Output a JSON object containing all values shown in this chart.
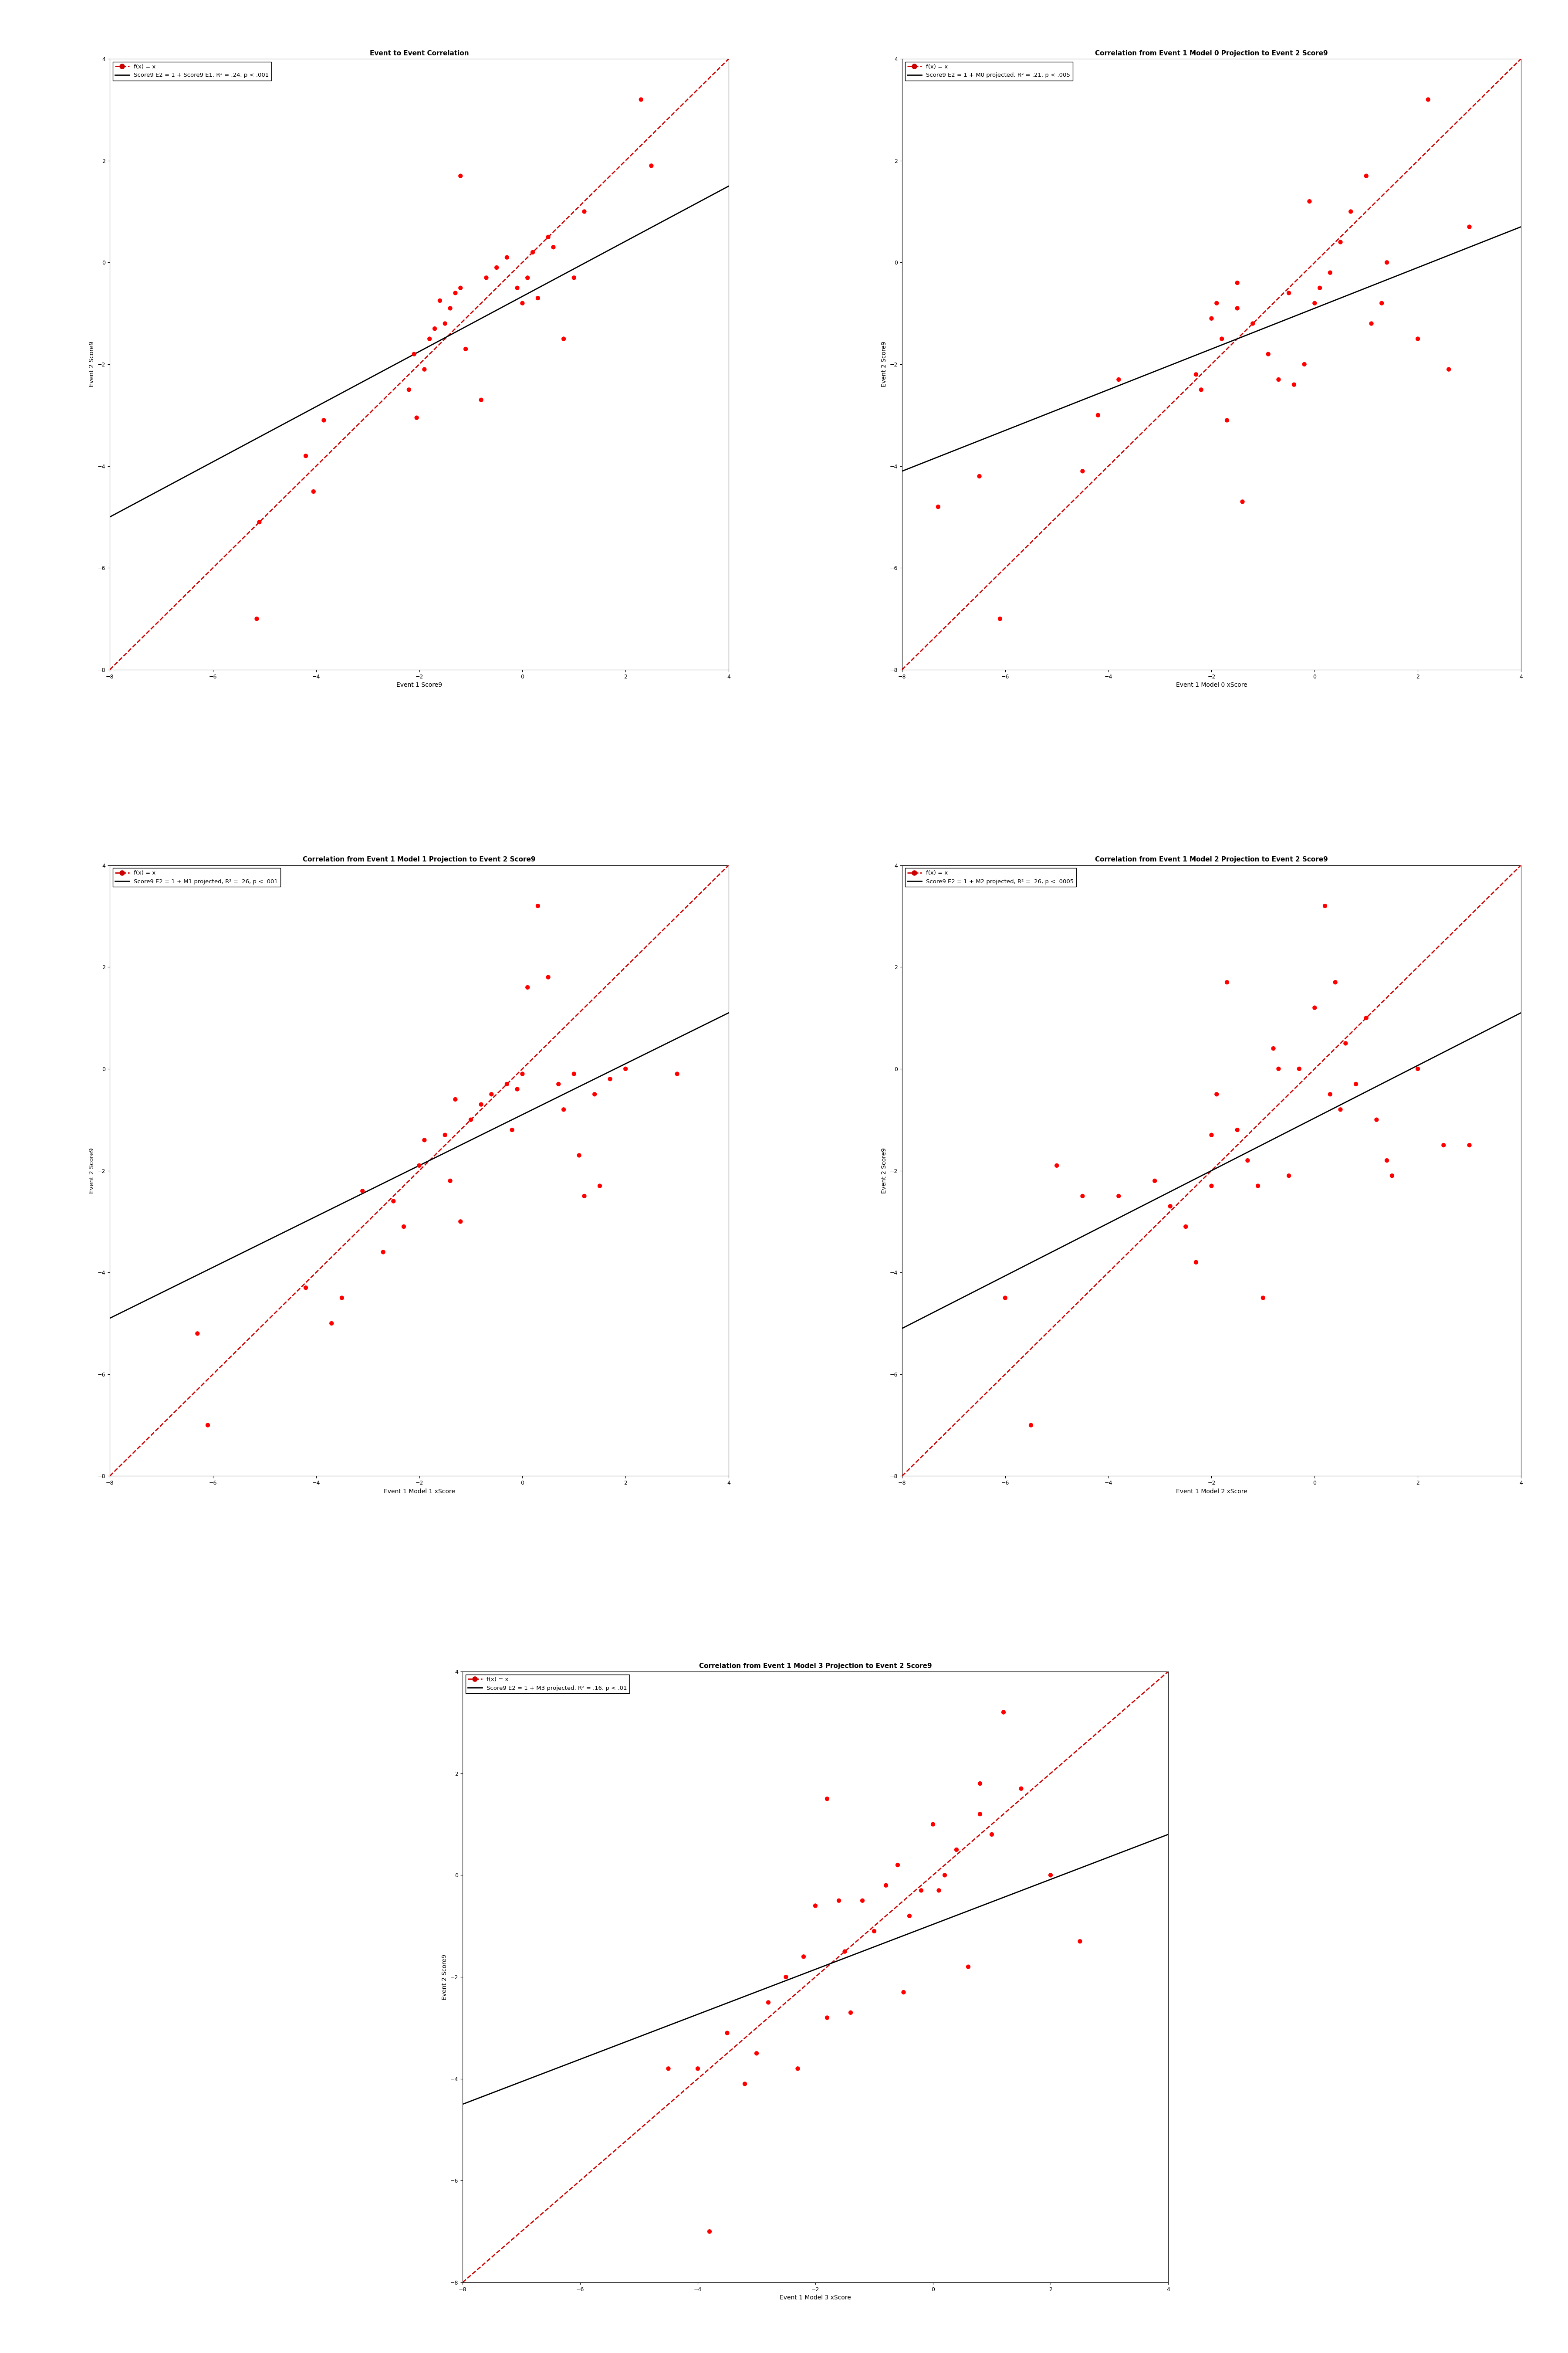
{
  "plots": [
    {
      "title": "Event to Event Correlation",
      "xlabel": "Event 1 Score9",
      "ylabel": "Event 2 Score9",
      "legend1": "f(x) = x",
      "legend2": "Score9 E2 = 1 + Score9 E1, R² = .24, p < .001",
      "scatter_x": [
        -5.1,
        -5.15,
        -4.2,
        -4.05,
        -3.85,
        -2.2,
        -2.1,
        -2.05,
        -1.9,
        -1.8,
        -1.7,
        -1.6,
        -1.5,
        -1.4,
        -1.3,
        -1.2,
        -1.1,
        -0.8,
        -0.7,
        -0.5,
        -0.3,
        -0.1,
        0.0,
        0.1,
        0.2,
        0.3,
        0.5,
        0.6,
        0.8,
        1.0,
        1.2,
        2.3,
        2.5,
        -1.2
      ],
      "scatter_y": [
        -5.1,
        -7.0,
        -3.8,
        -4.5,
        -3.1,
        -2.5,
        -1.8,
        -3.05,
        -2.1,
        -1.5,
        -1.3,
        -0.75,
        -1.2,
        -0.9,
        -0.6,
        -0.5,
        -1.7,
        -2.7,
        -0.3,
        -0.1,
        0.1,
        -0.5,
        -0.8,
        -0.3,
        0.2,
        -0.7,
        0.5,
        0.3,
        -1.5,
        -0.3,
        1.0,
        3.2,
        1.9,
        1.7
      ],
      "fit_x": [
        -8,
        4
      ],
      "fit_y": [
        -5.0,
        1.5
      ],
      "xlim": [
        -8,
        4
      ],
      "ylim": [
        -8,
        4
      ],
      "xticks": [
        -8,
        -6,
        -4,
        -2,
        0,
        2,
        4
      ],
      "yticks": [
        -8,
        -6,
        -4,
        -2,
        0,
        2,
        4
      ]
    },
    {
      "title": "Correlation from Event 1 Model 0 Projection to Event 2 Score9",
      "xlabel": "Event 1 Model 0 xScore",
      "ylabel": "Event 2 Score9",
      "legend1": "f(x) = x",
      "legend2": "Score9 E2 = 1 + M0 projected, R² = .21, p < .005",
      "scatter_x": [
        -7.3,
        -6.5,
        -6.1,
        -4.5,
        -4.2,
        -3.8,
        -2.3,
        -2.2,
        -1.9,
        -1.8,
        -1.7,
        -1.5,
        -1.4,
        -1.2,
        -0.9,
        -0.7,
        -0.5,
        -0.4,
        -0.2,
        -0.1,
        0.0,
        0.1,
        0.3,
        0.5,
        0.7,
        1.0,
        1.1,
        1.3,
        1.4,
        2.0,
        2.2,
        2.6,
        3.0,
        -2.0,
        -1.5
      ],
      "scatter_y": [
        -4.8,
        -4.2,
        -7.0,
        -4.1,
        -3.0,
        -2.3,
        -2.2,
        -2.5,
        -0.8,
        -1.5,
        -3.1,
        -0.9,
        -4.7,
        -1.2,
        -1.8,
        -2.3,
        -0.6,
        -2.4,
        -2.0,
        1.2,
        -0.8,
        -0.5,
        -0.2,
        0.4,
        1.0,
        1.7,
        -1.2,
        -0.8,
        0.0,
        -1.5,
        3.2,
        -2.1,
        0.7,
        -1.1,
        -0.4
      ],
      "fit_x": [
        -8,
        4
      ],
      "fit_y": [
        -4.1,
        0.7
      ],
      "xlim": [
        -8,
        4
      ],
      "ylim": [
        -8,
        4
      ],
      "xticks": [
        -8,
        -6,
        -4,
        -2,
        0,
        2,
        4
      ],
      "yticks": [
        -8,
        -6,
        -4,
        -2,
        0,
        2,
        4
      ]
    },
    {
      "title": "Correlation from Event 1 Model 1 Projection to Event 2 Score9",
      "xlabel": "Event 1 Model 1 xScore",
      "ylabel": "Event 2 Score9",
      "legend1": "f(x) = x",
      "legend2": "Score9 E2 = 1 + M1 projected, R² = .26, p < .001",
      "scatter_x": [
        -6.3,
        -6.1,
        -4.2,
        -3.7,
        -3.1,
        -2.7,
        -2.3,
        -2.0,
        -1.9,
        -1.5,
        -1.4,
        -1.3,
        -1.2,
        -0.8,
        -0.6,
        -0.3,
        -0.2,
        -0.1,
        0.0,
        0.1,
        0.3,
        0.5,
        0.7,
        0.8,
        1.0,
        1.1,
        1.2,
        1.4,
        1.5,
        1.7,
        2.0,
        3.0,
        -2.5,
        -3.5,
        -1.0
      ],
      "scatter_y": [
        -5.2,
        -7.0,
        -4.3,
        -5.0,
        -2.4,
        -3.6,
        -3.1,
        -1.9,
        -1.4,
        -1.3,
        -2.2,
        -0.6,
        -3.0,
        -0.7,
        -0.5,
        -0.3,
        -1.2,
        -0.4,
        -0.1,
        1.6,
        3.2,
        1.8,
        -0.3,
        -0.8,
        -0.1,
        -1.7,
        -2.5,
        -0.5,
        -2.3,
        -0.2,
        0.0,
        -0.1,
        -2.6,
        -4.5,
        -1.0
      ],
      "fit_x": [
        -8,
        4
      ],
      "fit_y": [
        -4.9,
        1.1
      ],
      "xlim": [
        -8,
        4
      ],
      "ylim": [
        -8,
        4
      ],
      "xticks": [
        -8,
        -6,
        -4,
        -2,
        0,
        2,
        4
      ],
      "yticks": [
        -8,
        -6,
        -4,
        -2,
        0,
        2,
        4
      ]
    },
    {
      "title": "Correlation from Event 1 Model 2 Projection to Event 2 Score9",
      "xlabel": "Event 1 Model 2 xScore",
      "ylabel": "Event 2 Score9",
      "legend1": "f(x) = x",
      "legend2": "Score9 E2 = 1 + M2 projected, R² = .26, p < .0005",
      "scatter_x": [
        -6.0,
        -5.5,
        -5.0,
        -4.5,
        -3.8,
        -3.1,
        -2.5,
        -2.3,
        -2.0,
        -1.9,
        -1.5,
        -1.3,
        -1.1,
        -0.8,
        -0.7,
        -0.5,
        -0.3,
        0.0,
        0.2,
        0.4,
        0.5,
        0.6,
        0.8,
        1.0,
        1.2,
        1.4,
        1.5,
        2.0,
        2.5,
        3.0,
        -1.0,
        -2.8,
        -2.0,
        0.3,
        -1.7
      ],
      "scatter_y": [
        -4.5,
        -7.0,
        -1.9,
        -2.5,
        -2.5,
        -2.2,
        -3.1,
        -3.8,
        -1.3,
        -0.5,
        -1.2,
        -1.8,
        -2.3,
        0.4,
        0.0,
        -2.1,
        0.0,
        1.2,
        3.2,
        1.7,
        -0.8,
        0.5,
        -0.3,
        1.0,
        -1.0,
        -1.8,
        -2.1,
        0.0,
        -1.5,
        -1.5,
        -4.5,
        -2.7,
        -2.3,
        -0.5,
        1.7
      ],
      "fit_x": [
        -8,
        4
      ],
      "fit_y": [
        -5.1,
        1.1
      ],
      "xlim": [
        -8,
        4
      ],
      "ylim": [
        -8,
        4
      ],
      "xticks": [
        -8,
        -6,
        -4,
        -2,
        0,
        2,
        4
      ],
      "yticks": [
        -8,
        -6,
        -4,
        -2,
        0,
        2,
        4
      ]
    },
    {
      "title": "Correlation from Event 1 Model 3 Projection to Event 2 Score9",
      "xlabel": "Event 1 Model 3 xScore",
      "ylabel": "Event 2 Score9",
      "legend1": "f(x) = x",
      "legend2": "Score9 E2 = 1 + M3 projected, R² = .16, p < .01",
      "scatter_x": [
        -4.5,
        -3.8,
        -3.5,
        -3.2,
        -3.0,
        -2.8,
        -2.5,
        -2.2,
        -2.0,
        -1.8,
        -1.5,
        -1.4,
        -1.2,
        -1.0,
        -0.8,
        -0.6,
        -0.4,
        -0.2,
        0.0,
        0.2,
        0.4,
        0.6,
        0.8,
        1.0,
        1.2,
        1.5,
        2.0,
        2.5,
        -1.6,
        -2.3,
        -0.5,
        -4.0,
        0.1,
        0.8,
        -1.8
      ],
      "scatter_y": [
        -3.8,
        -7.0,
        -3.1,
        -4.1,
        -3.5,
        -2.5,
        -2.0,
        -1.6,
        -0.6,
        -2.8,
        -1.5,
        -2.7,
        -0.5,
        -1.1,
        -0.2,
        0.2,
        -0.8,
        -0.3,
        1.0,
        0.0,
        0.5,
        -1.8,
        1.2,
        0.8,
        3.2,
        1.7,
        0.0,
        -1.3,
        -0.5,
        -3.8,
        -2.3,
        -3.8,
        -0.3,
        1.8,
        1.5
      ],
      "fit_x": [
        -8,
        4
      ],
      "fit_y": [
        -4.5,
        0.8
      ],
      "xlim": [
        -8,
        4
      ],
      "ylim": [
        -8,
        4
      ],
      "xticks": [
        -8,
        -6,
        -4,
        -2,
        0,
        2,
        4
      ],
      "yticks": [
        -8,
        -6,
        -4,
        -2,
        0,
        2,
        4
      ]
    }
  ],
  "scatter_color": "#FF0000",
  "scatter_size": 55,
  "fit_color": "#000000",
  "ref_color": "#CC0000",
  "ref_linestyle": "--",
  "fit_linewidth": 2.0,
  "ref_linewidth": 2.0,
  "background_color": "#FFFFFF",
  "title_fontsize": 11,
  "label_fontsize": 10,
  "tick_fontsize": 9,
  "legend_fontsize": 9.5
}
